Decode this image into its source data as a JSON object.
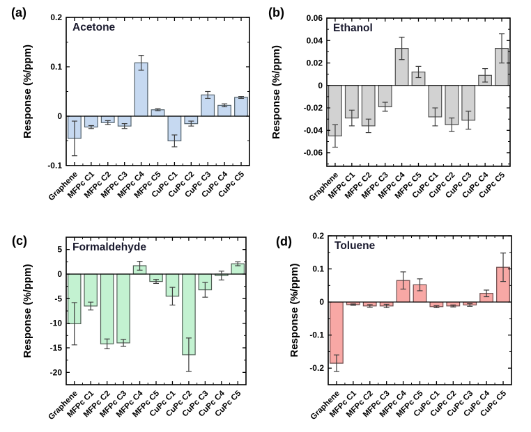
{
  "figure": {
    "ylabel": "Response (%/ppm)",
    "title_color": "#1a1a2e",
    "axis_color": "#000000",
    "error_color": "#3c3c3c",
    "categories": [
      "Graphene",
      "MFPc C1",
      "MFPc C2",
      "MFPc C3",
      "MFPc C4",
      "MFPc C5",
      "CuPc C1",
      "CuPc C2",
      "CuPc C3",
      "CuPc C4",
      "CuPc C5"
    ]
  },
  "chart_data": [
    {
      "type": "bar",
      "panel_label": "(a)",
      "title": "Acetone",
      "xlabel": "",
      "ylabel": "Response (%/ppm)",
      "categories": [
        "Graphene",
        "MFPc C1",
        "MFPc C2",
        "MFPc C3",
        "MFPc C4",
        "MFPc C5",
        "CuPc C1",
        "CuPc C2",
        "CuPc C3",
        "CuPc C4",
        "CuPc C5"
      ],
      "values": [
        -0.045,
        -0.022,
        -0.013,
        -0.02,
        0.108,
        0.013,
        -0.05,
        -0.015,
        0.043,
        0.022,
        0.038
      ],
      "errors": [
        0.035,
        0.003,
        0.004,
        0.005,
        0.015,
        0.002,
        0.012,
        0.005,
        0.007,
        0.003,
        0.002
      ],
      "ylim": [
        -0.1,
        0.2
      ],
      "yticks": [
        0.2,
        0.1,
        0,
        -0.1
      ],
      "ytick_labels": [
        "0.2",
        "0.1",
        "0",
        "-0.1"
      ],
      "grid": false,
      "legend": "none",
      "bar_color": "#c6d9f1",
      "edge_color": "#51606b"
    },
    {
      "type": "bar",
      "panel_label": "(b)",
      "title": "Ethanol",
      "xlabel": "",
      "ylabel": "Response (%/ppm)",
      "categories": [
        "Graphene",
        "MFPc C1",
        "MFPc C2",
        "MFPc C3",
        "MFPc C4",
        "MFPc C5",
        "CuPc C1",
        "CuPc C2",
        "CuPc C3",
        "CuPc C4",
        "CuPc C5"
      ],
      "values": [
        -0.045,
        -0.029,
        -0.036,
        -0.019,
        0.033,
        0.012,
        -0.028,
        -0.035,
        -0.031,
        0.009,
        0.033
      ],
      "errors": [
        0.01,
        0.007,
        0.006,
        0.004,
        0.01,
        0.005,
        0.008,
        0.006,
        0.008,
        0.006,
        0.013
      ],
      "ylim": [
        -0.072,
        0.06
      ],
      "yticks": [
        0.06,
        0.04,
        0.02,
        0,
        -0.02,
        -0.04,
        -0.06
      ],
      "ytick_labels": [
        "0.06",
        "0.04",
        "0.02",
        "0",
        "-0.02",
        "-0.04",
        "-0.06"
      ],
      "grid": false,
      "legend": "none",
      "bar_color": "#d2d2d2",
      "edge_color": "#4f4f4f"
    },
    {
      "type": "bar",
      "panel_label": "(c)",
      "title": "Formaldehyde",
      "xlabel": "",
      "ylabel": "Response (%/ppm)",
      "categories": [
        "Graphene",
        "MFPc C1",
        "MFPc C2",
        "MFPc C3",
        "MFPc C4",
        "MFPc C5",
        "CuPc C1",
        "CuPc C2",
        "CuPc C3",
        "CuPc C4",
        "CuPc C5"
      ],
      "values": [
        -10.1,
        -6.5,
        -14.2,
        -14.0,
        1.7,
        -1.5,
        -4.5,
        -16.4,
        -3.2,
        -0.3,
        2.1
      ],
      "errors": [
        4.3,
        0.8,
        1.0,
        0.7,
        0.9,
        0.4,
        1.8,
        3.4,
        1.5,
        0.9,
        0.4
      ],
      "ylim": [
        -22.5,
        7.5
      ],
      "yticks": [
        5,
        0,
        -5,
        -10,
        -15,
        -20
      ],
      "ytick_labels": [
        "5",
        "0",
        "-5",
        "-10",
        "-15",
        "-20"
      ],
      "grid": false,
      "legend": "none",
      "bar_color": "#c3f2d1",
      "edge_color": "#4f5f55"
    },
    {
      "type": "bar",
      "panel_label": "(d)",
      "title": "Toluene",
      "xlabel": "",
      "ylabel": "Response (%/ppm)",
      "categories": [
        "Graphene",
        "MFPc C1",
        "MFPc C2",
        "MFPc C3",
        "MFPc C4",
        "MFPc C5",
        "CuPc C1",
        "CuPc C2",
        "CuPc C3",
        "CuPc C4",
        "CuPc C5"
      ],
      "values": [
        -0.185,
        -0.008,
        -0.012,
        -0.012,
        0.065,
        0.052,
        -0.014,
        -0.012,
        -0.009,
        0.026,
        0.105
      ],
      "errors": [
        0.025,
        0.002,
        0.004,
        0.005,
        0.026,
        0.018,
        0.003,
        0.003,
        0.004,
        0.01,
        0.043
      ],
      "ylim": [
        -0.25,
        0.2
      ],
      "yticks": [
        0.2,
        0.1,
        0,
        -0.1,
        -0.2
      ],
      "ytick_labels": [
        "0.2",
        "0.1",
        "0",
        "-0.1",
        "-0.2"
      ],
      "grid": false,
      "legend": "none",
      "bar_color": "#f8a8a5",
      "edge_color": "#6b4a4a"
    }
  ]
}
